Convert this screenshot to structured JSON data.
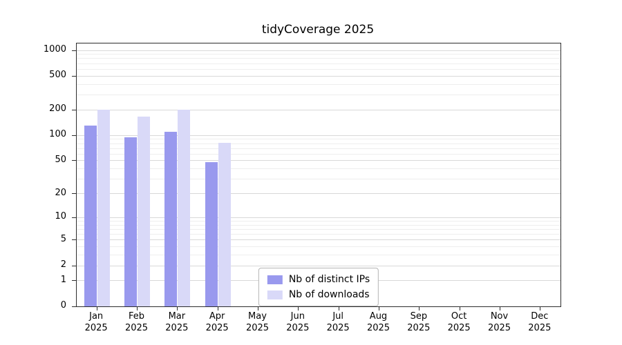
{
  "chart_data": {
    "type": "bar",
    "title": "tidyCoverage 2025",
    "xlabel": "",
    "ylabel": "",
    "categories": [
      "Jan 2025",
      "Feb 2025",
      "Mar 2025",
      "Apr 2025",
      "May 2025",
      "Jun 2025",
      "Jul 2025",
      "Aug 2025",
      "Sep 2025",
      "Oct 2025",
      "Nov 2025",
      "Dec 2025"
    ],
    "series": [
      {
        "name": "Nb of distinct IPs",
        "color": "#9999ee",
        "values": [
          130,
          95,
          110,
          48,
          null,
          null,
          null,
          null,
          null,
          null,
          null,
          null
        ]
      },
      {
        "name": "Nb of downloads",
        "color": "#d9d9f8",
        "values": [
          200,
          165,
          200,
          82,
          null,
          null,
          null,
          null,
          null,
          null,
          null,
          null
        ]
      }
    ],
    "yticks": [
      0,
      1,
      2,
      5,
      10,
      20,
      50,
      100,
      200,
      500,
      1000
    ],
    "scale": "log1p",
    "ylim": [
      0,
      1100
    ],
    "grid": true,
    "legend": {
      "position": "inside-bottom-center",
      "entries": [
        "Nb of distinct IPs",
        "Nb of downloads"
      ]
    },
    "colors": {
      "axis": "#2b2b2b",
      "grid_major": "#d8d8d8",
      "grid_minor": "#eeeeee",
      "background": "#ffffff"
    }
  }
}
